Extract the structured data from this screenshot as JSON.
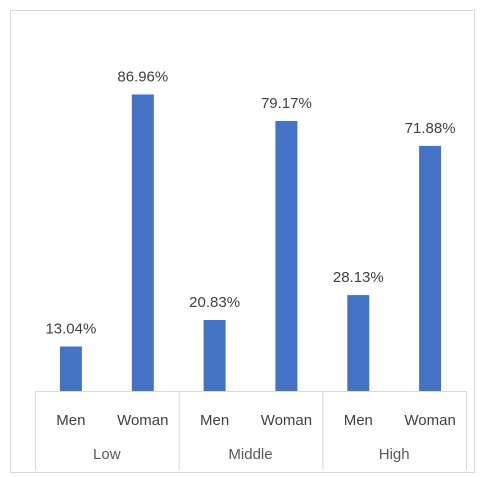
{
  "chart_data": {
    "type": "bar",
    "groups": [
      "Low",
      "Middle",
      "High"
    ],
    "categories": [
      "Men",
      "Woman",
      "Men",
      "Woman",
      "Men",
      "Woman"
    ],
    "values": [
      13.04,
      86.96,
      20.83,
      79.17,
      28.13,
      71.88
    ],
    "data_labels": [
      "13.04%",
      "86.96%",
      "20.83%",
      "79.17%",
      "28.13%",
      "71.88%"
    ],
    "title": "",
    "xlabel": "",
    "ylabel": "",
    "ylim": [
      0,
      100
    ],
    "grid": false,
    "legend": "none",
    "bar_color": "#4472c4"
  }
}
